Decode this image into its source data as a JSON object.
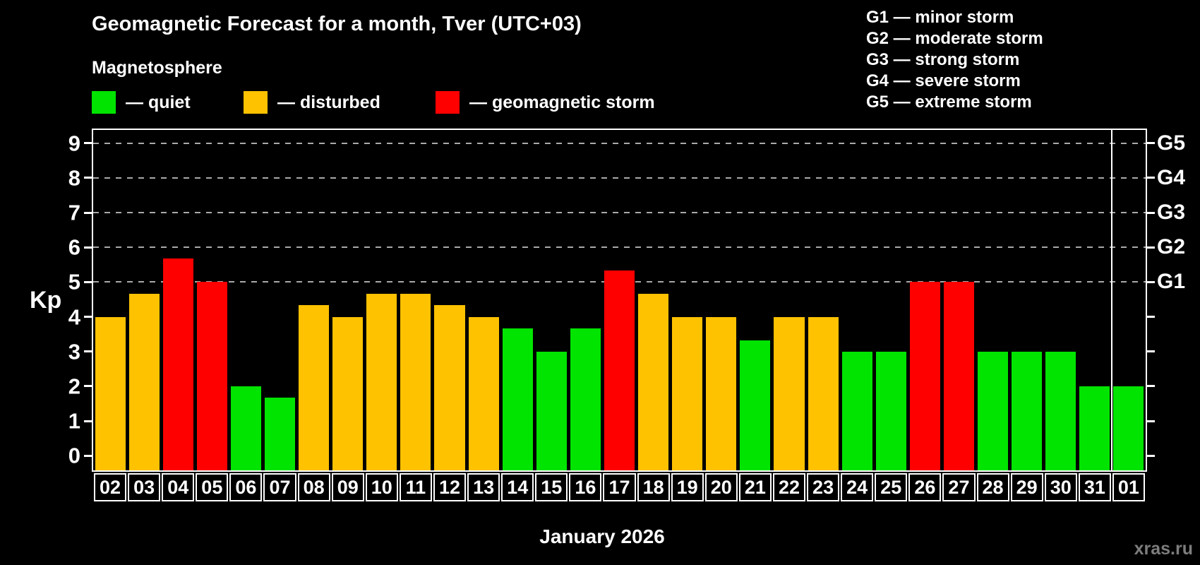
{
  "header": {
    "title": "Geomagnetic Forecast for a month, Tver (UTC+03)",
    "subtitle": "Magnetosphere"
  },
  "legend": {
    "items": [
      {
        "key": "quiet",
        "label": "— quiet",
        "color": "#00e400"
      },
      {
        "key": "disturbed",
        "label": "— disturbed",
        "color": "#ffc200"
      },
      {
        "key": "storm",
        "label": "— geomagnetic storm",
        "color": "#ff0000"
      }
    ]
  },
  "storm_scale_legend": {
    "items": [
      {
        "code": "G1",
        "label": "G1 — minor storm"
      },
      {
        "code": "G2",
        "label": "G2 — moderate storm"
      },
      {
        "code": "G3",
        "label": "G3 — strong storm"
      },
      {
        "code": "G4",
        "label": "G4 — severe storm"
      },
      {
        "code": "G5",
        "label": "G5 — extreme storm"
      }
    ]
  },
  "chart_data": {
    "type": "bar",
    "title": "Geomagnetic Forecast for a month, Tver (UTC+03)",
    "ylabel": "Kp",
    "xlabel": "January 2026",
    "ylim": [
      0,
      9
    ],
    "yticks": [
      0,
      1,
      2,
      3,
      4,
      5,
      6,
      7,
      8,
      9
    ],
    "gridlines": [
      5,
      6,
      7,
      8,
      9
    ],
    "right_axis_labels": [
      {
        "label": "G1",
        "kp": 5
      },
      {
        "label": "G2",
        "kp": 6
      },
      {
        "label": "G3",
        "kp": 7
      },
      {
        "label": "G4",
        "kp": 8
      },
      {
        "label": "G5",
        "kp": 9
      }
    ],
    "categories": [
      "02",
      "03",
      "04",
      "05",
      "06",
      "07",
      "08",
      "09",
      "10",
      "11",
      "12",
      "13",
      "14",
      "15",
      "16",
      "17",
      "18",
      "19",
      "20",
      "21",
      "22",
      "23",
      "24",
      "25",
      "26",
      "27",
      "28",
      "29",
      "30",
      "31",
      "01"
    ],
    "values": [
      4,
      4.67,
      5.67,
      5,
      2,
      1.67,
      4.33,
      4,
      4.67,
      4.67,
      4.33,
      4,
      3.67,
      3,
      3.67,
      5.33,
      4.67,
      4,
      4,
      3.33,
      4,
      4,
      3,
      3,
      5,
      5,
      3,
      3,
      3,
      2,
      2
    ],
    "statuses": [
      "disturbed",
      "disturbed",
      "storm",
      "storm",
      "quiet",
      "quiet",
      "disturbed",
      "disturbed",
      "disturbed",
      "disturbed",
      "disturbed",
      "disturbed",
      "quiet",
      "quiet",
      "quiet",
      "storm",
      "disturbed",
      "disturbed",
      "disturbed",
      "quiet",
      "disturbed",
      "disturbed",
      "quiet",
      "quiet",
      "storm",
      "storm",
      "quiet",
      "quiet",
      "quiet",
      "quiet",
      "quiet"
    ],
    "colors": {
      "quiet": "#00e400",
      "disturbed": "#ffc200",
      "storm": "#ff0000"
    },
    "month_separator_before": "01",
    "grid_color": "#a9a9a9",
    "legend_position": "top"
  },
  "footer": {
    "caption": "January 2026",
    "watermark": "xras.ru"
  }
}
